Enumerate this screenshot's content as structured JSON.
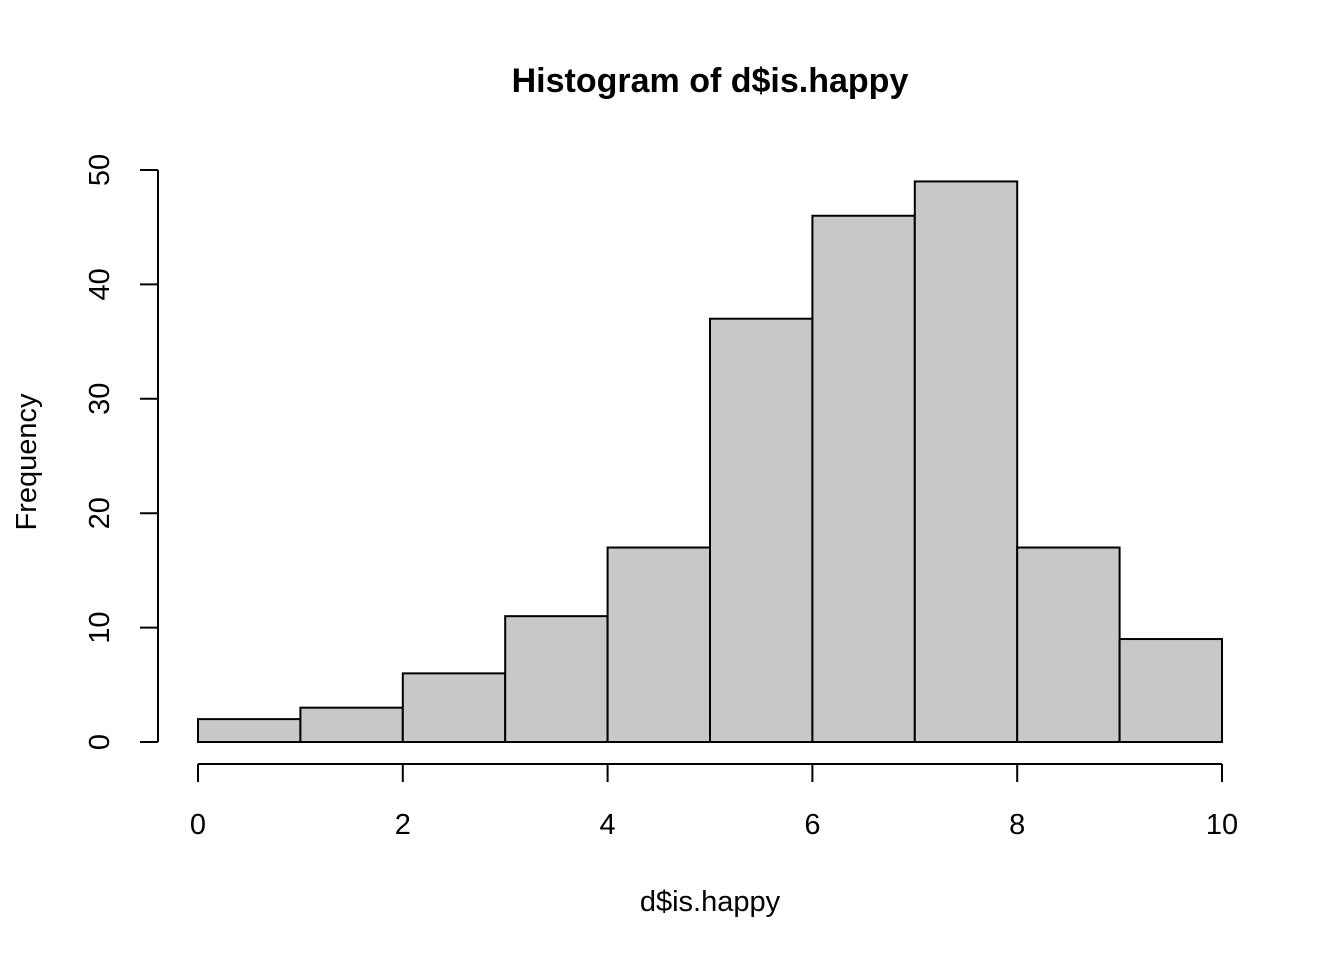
{
  "chart_data": {
    "type": "bar",
    "subtype": "histogram",
    "title": "Histogram of d$is.happy",
    "xlabel": "d$is.happy",
    "ylabel": "Frequency",
    "bins": [
      {
        "from": 0,
        "to": 1,
        "value": 2
      },
      {
        "from": 1,
        "to": 2,
        "value": 3
      },
      {
        "from": 2,
        "to": 3,
        "value": 6
      },
      {
        "from": 3,
        "to": 4,
        "value": 11
      },
      {
        "from": 4,
        "to": 5,
        "value": 17
      },
      {
        "from": 5,
        "to": 6,
        "value": 37
      },
      {
        "from": 6,
        "to": 7,
        "value": 46
      },
      {
        "from": 7,
        "to": 8,
        "value": 49
      },
      {
        "from": 8,
        "to": 9,
        "value": 17
      },
      {
        "from": 9,
        "to": 10,
        "value": 9
      }
    ],
    "xlim": [
      0,
      10
    ],
    "ylim": [
      0,
      50
    ],
    "x_ticks": [
      "0",
      "2",
      "4",
      "6",
      "8",
      "10"
    ],
    "y_ticks": [
      "0",
      "10",
      "20",
      "30",
      "40",
      "50"
    ],
    "grid": false,
    "legend": "none",
    "colors": {
      "bar_fill": "#c8c8c8",
      "bar_stroke": "#000000",
      "background": "#ffffff"
    }
  }
}
